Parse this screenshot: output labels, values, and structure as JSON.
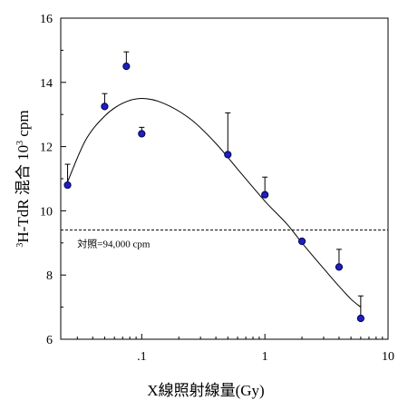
{
  "chart_data": {
    "type": "scatter",
    "xlabel": "X線照射線量(Gy)",
    "ylabel_parts": {
      "sup": "3",
      "main": "H-TdR 混合  10",
      "sup2": "3",
      "unit": " cpm"
    },
    "x_scale": "log",
    "xlim": [
      0.022,
      10
    ],
    "ylim": [
      6,
      16
    ],
    "x_ticks": [
      {
        "value": 0.1,
        "label": ".1"
      },
      {
        "value": 1,
        "label": "1"
      },
      {
        "value": 10,
        "label": "10"
      }
    ],
    "y_ticks": [
      {
        "value": 6,
        "label": "6"
      },
      {
        "value": 8,
        "label": "8"
      },
      {
        "value": 10,
        "label": "10"
      },
      {
        "value": 12,
        "label": "12"
      },
      {
        "value": 14,
        "label": "14"
      },
      {
        "value": 16,
        "label": "16"
      }
    ],
    "points": [
      {
        "x": 0.025,
        "y": 10.8,
        "err": 0.65
      },
      {
        "x": 0.05,
        "y": 13.25,
        "err": 0.4
      },
      {
        "x": 0.075,
        "y": 14.5,
        "err": 0.45
      },
      {
        "x": 0.1,
        "y": 12.4,
        "err": 0.2
      },
      {
        "x": 0.5,
        "y": 11.75,
        "err": 1.3
      },
      {
        "x": 1,
        "y": 10.5,
        "err": 0.55
      },
      {
        "x": 2,
        "y": 9.05,
        "err": 0.05
      },
      {
        "x": 4,
        "y": 8.25,
        "err": 0.55
      },
      {
        "x": 6,
        "y": 6.65,
        "err": 0.7
      }
    ],
    "fit_curve": [
      {
        "x": 0.025,
        "y": 10.9
      },
      {
        "x": 0.035,
        "y": 12.2
      },
      {
        "x": 0.05,
        "y": 12.95
      },
      {
        "x": 0.07,
        "y": 13.35
      },
      {
        "x": 0.1,
        "y": 13.5
      },
      {
        "x": 0.15,
        "y": 13.35
      },
      {
        "x": 0.25,
        "y": 12.85
      },
      {
        "x": 0.4,
        "y": 12.1
      },
      {
        "x": 0.6,
        "y": 11.3
      },
      {
        "x": 1,
        "y": 10.3
      },
      {
        "x": 1.5,
        "y": 9.6
      },
      {
        "x": 2,
        "y": 9.0
      },
      {
        "x": 3,
        "y": 8.2
      },
      {
        "x": 4,
        "y": 7.65
      },
      {
        "x": 5,
        "y": 7.25
      },
      {
        "x": 6,
        "y": 7.0
      }
    ],
    "reference": {
      "y": 9.4,
      "label": "対照=94,000 cpm",
      "style": "dashed"
    },
    "colors": {
      "marker": "#1f1fbf",
      "marker_edge": "#00005a",
      "line": "#000000"
    }
  }
}
